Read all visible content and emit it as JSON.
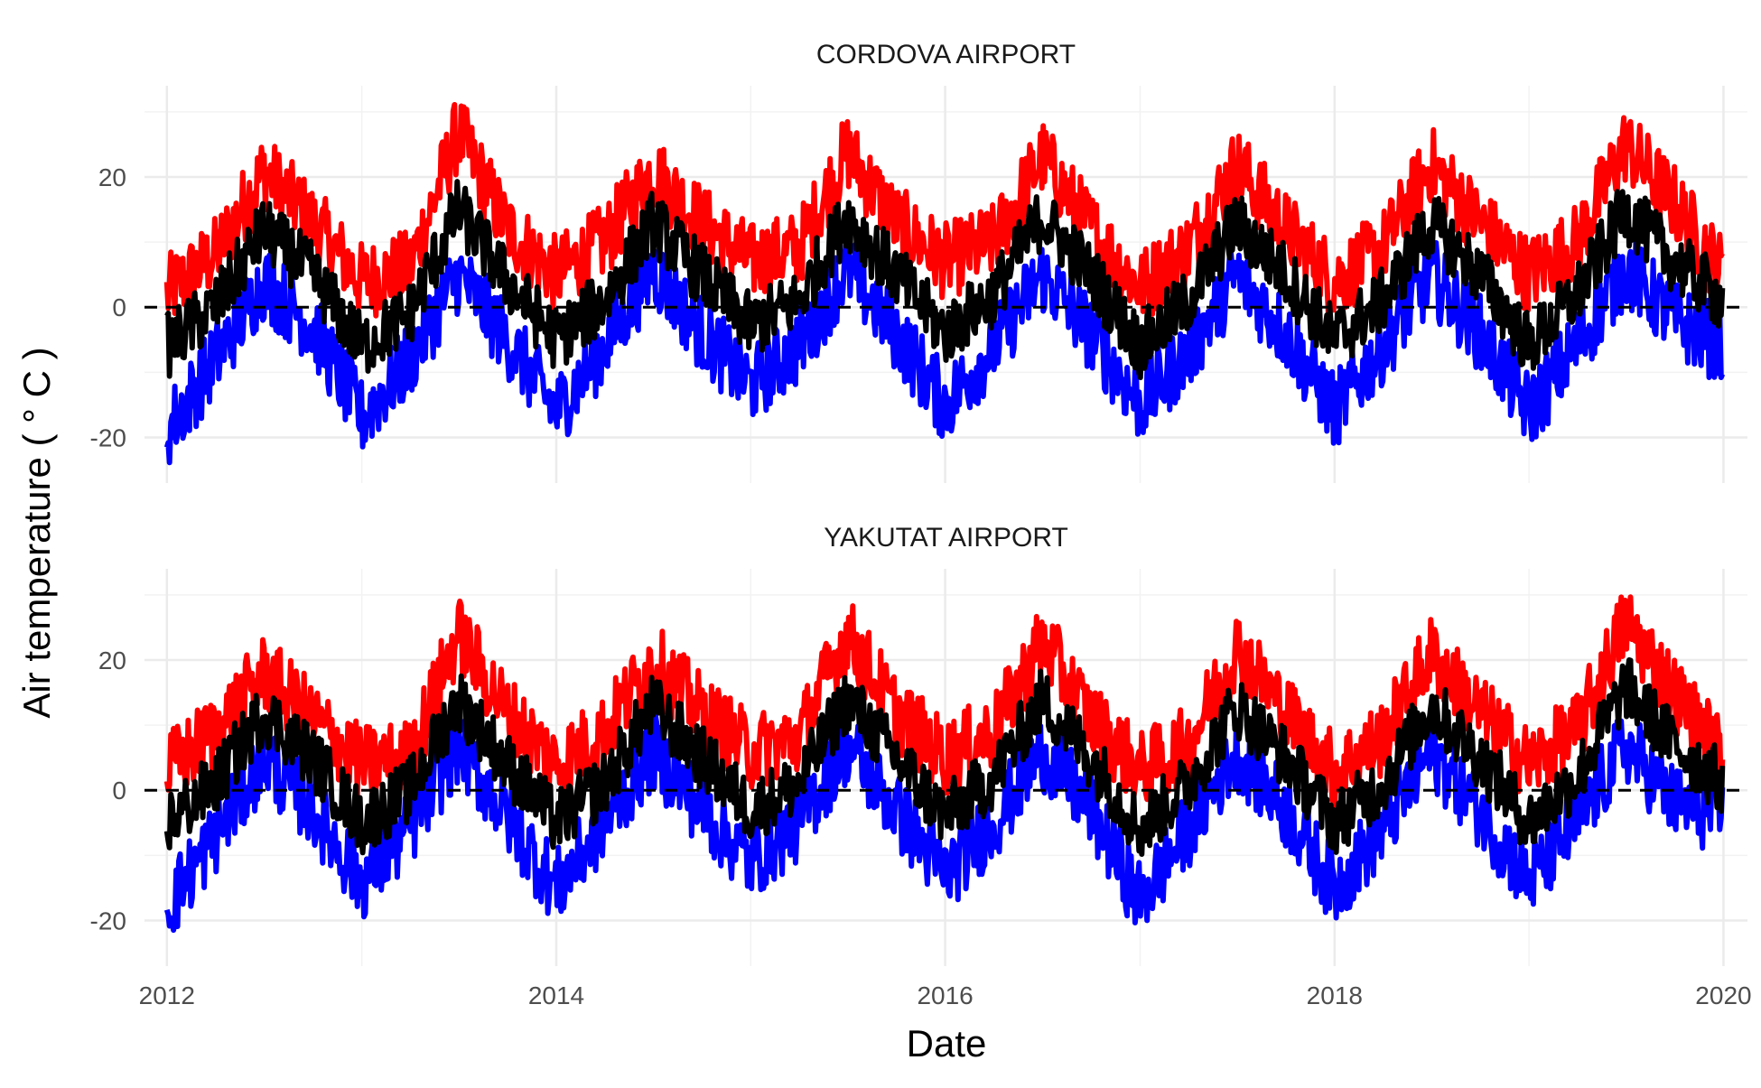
{
  "chart_data": {
    "type": "line",
    "xlabel": "Date",
    "ylabel": "Air temperature ( ° C )",
    "x_ticks": [
      "2012",
      "2014",
      "2016",
      "2018",
      "2020"
    ],
    "y_ticks": [
      "20",
      "0",
      "-20"
    ],
    "xlim": [
      "2011-11-20",
      "2020-02-15"
    ],
    "ylim": [
      -27,
      34
    ],
    "reference_line": {
      "y": 0,
      "style": "dashed"
    },
    "grid": true,
    "legend": "none",
    "colors": {
      "max": "#ff0000",
      "min": "#0000ff",
      "mean": "#000000"
    },
    "panels": [
      {
        "title": "CORDOVA AIRPORT",
        "x": [
          "2012-01-01",
          "2012-04-01",
          "2012-07-01",
          "2012-10-01",
          "2013-01-01",
          "2013-04-01",
          "2013-07-01",
          "2013-10-01",
          "2014-01-01",
          "2014-04-01",
          "2014-07-01",
          "2014-10-01",
          "2015-01-01",
          "2015-04-01",
          "2015-07-01",
          "2015-10-01",
          "2016-01-01",
          "2016-04-01",
          "2016-07-01",
          "2016-10-01",
          "2017-01-01",
          "2017-04-01",
          "2017-07-01",
          "2017-10-01",
          "2018-01-01",
          "2018-04-01",
          "2018-07-01",
          "2018-10-01",
          "2019-01-01",
          "2019-04-01",
          "2019-07-01",
          "2019-10-01",
          "2020-01-01"
        ],
        "series": [
          {
            "values": [
              2,
              8,
              21,
              13,
              4,
              6,
              27,
              12,
              5,
              10,
              21,
              13,
              7,
              9,
              24,
              13,
              7,
              10,
              23,
              12,
              3,
              9,
              22,
              12,
              4,
              9,
              22,
              13,
              5,
              10,
              25,
              16,
              5
            ]
          },
          {
            "values": [
              -19,
              -8,
              4,
              -3,
              -17,
              -8,
              5,
              -5,
              -16,
              -6,
              6,
              -4,
              -12,
              -6,
              6,
              -4,
              -15,
              -6,
              5,
              -4,
              -15,
              -7,
              5,
              -4,
              -16,
              -6,
              5,
              -4,
              -16,
              -6,
              6,
              -2,
              -6
            ]
          },
          {
            "values": [
              -6,
              0,
              12,
              5,
              -6,
              -1,
              15,
              4,
              -5,
              1,
              13,
              5,
              -3,
              1,
              14,
              5,
              -4,
              2,
              14,
              5,
              -6,
              1,
              13,
              5,
              -5,
              1,
              13,
              5,
              -6,
              2,
              15,
              7,
              1
            ]
          }
        ]
      },
      {
        "title": "YAKUTAT AIRPORT",
        "x": [
          "2012-01-01",
          "2012-04-01",
          "2012-07-01",
          "2012-10-01",
          "2013-01-01",
          "2013-04-01",
          "2013-07-01",
          "2013-10-01",
          "2014-01-01",
          "2014-04-01",
          "2014-07-01",
          "2014-10-01",
          "2015-01-01",
          "2015-04-01",
          "2015-07-01",
          "2015-10-01",
          "2016-01-01",
          "2016-04-01",
          "2016-07-01",
          "2016-10-01",
          "2017-01-01",
          "2017-04-01",
          "2017-07-01",
          "2017-10-01",
          "2018-01-01",
          "2018-04-01",
          "2018-07-01",
          "2018-10-01",
          "2019-01-01",
          "2019-04-01",
          "2019-07-01",
          "2019-10-01",
          "2020-01-01"
        ],
        "series": [
          {
            "values": [
              3,
              9,
              18,
              11,
              4,
              5,
              24,
              12,
              4,
              9,
              20,
              12,
              6,
              8,
              24,
              12,
              5,
              9,
              23,
              11,
              3,
              7,
              22,
              12,
              3,
              8,
              21,
              12,
              4,
              9,
              26,
              15,
              5
            ]
          },
          {
            "values": [
              -18,
              -7,
              5,
              -3,
              -14,
              -6,
              7,
              -4,
              -15,
              -5,
              6,
              -3,
              -11,
              -5,
              7,
              -3,
              -13,
              -5,
              6,
              -3,
              -17,
              -6,
              6,
              -3,
              -15,
              -6,
              6,
              -3,
              -14,
              -5,
              7,
              -2,
              -4
            ]
          },
          {
            "values": [
              -5,
              1,
              12,
              5,
              -5,
              0,
              14,
              4,
              -5,
              1,
              13,
              5,
              -3,
              1,
              14,
              5,
              -4,
              2,
              14,
              5,
              -6,
              1,
              13,
              5,
              -5,
              1,
              13,
              5,
              -5,
              2,
              16,
              7,
              1
            ]
          }
        ]
      }
    ]
  }
}
